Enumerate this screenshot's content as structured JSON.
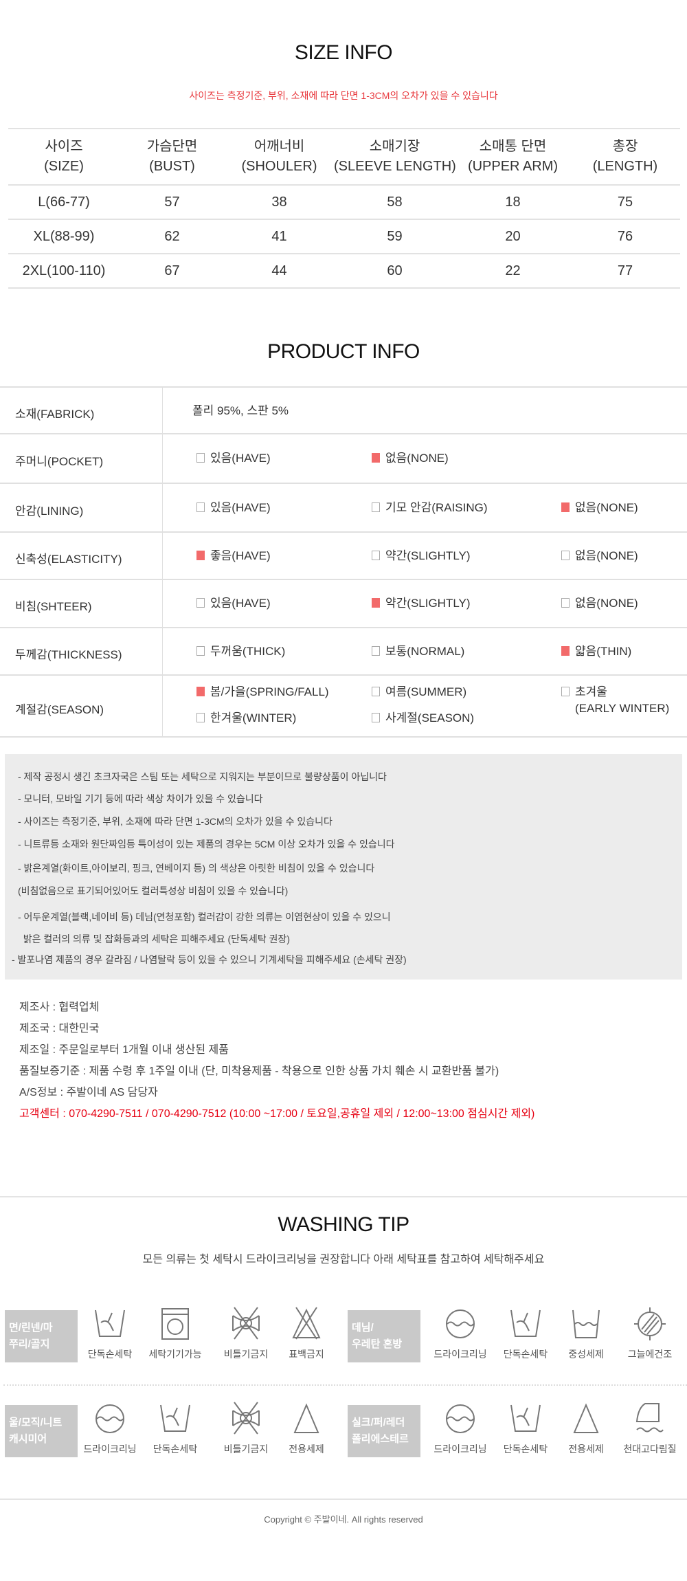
{
  "size_info": {
    "title": "SIZE INFO",
    "subtitle": "사이즈는 측정기준, 부위, 소재에 따라 단면 1-3CM의 오차가 있을 수 있습니다",
    "headers": [
      [
        "사이즈",
        "(SIZE)"
      ],
      [
        "가슴단면",
        "(BUST)"
      ],
      [
        "어깨너비",
        "(SHOULER)"
      ],
      [
        "소매기장",
        "(SLEEVE LENGTH)"
      ],
      [
        "소매통 단면",
        "(UPPER ARM)"
      ],
      [
        "총장",
        "(LENGTH)"
      ]
    ],
    "rows": [
      [
        "L(66-77)",
        "57",
        "38",
        "58",
        "18",
        "75"
      ],
      [
        "XL(88-99)",
        "62",
        "41",
        "59",
        "20",
        "76"
      ],
      [
        "2XL(100-110)",
        "67",
        "44",
        "60",
        "22",
        "77"
      ]
    ]
  },
  "product_info": {
    "title": "PRODUCT INFO",
    "accent": "#f26a6a",
    "fabric": {
      "label": "소재(FABRICK)",
      "value": "폴리 95%, 스판 5%"
    },
    "rows": [
      {
        "label": "주머니(POCKET)",
        "options": [
          {
            "text": "있음(HAVE)",
            "checked": false
          },
          {
            "text": "없음(NONE)",
            "checked": true
          }
        ]
      },
      {
        "label": "안감(LINING)",
        "options": [
          {
            "text": "있음(HAVE)",
            "checked": false
          },
          {
            "text": "기모 안감(RAISING)",
            "checked": false
          },
          {
            "text": "없음(NONE)",
            "checked": true
          }
        ]
      },
      {
        "label": "신축성(ELASTICITY)",
        "options": [
          {
            "text": "좋음(HAVE)",
            "checked": true
          },
          {
            "text": "약간(SLIGHTLY)",
            "checked": false
          },
          {
            "text": "없음(NONE)",
            "checked": false
          }
        ]
      },
      {
        "label": "비침(SHTEER)",
        "options": [
          {
            "text": "있음(HAVE)",
            "checked": false
          },
          {
            "text": "약간(SLIGHTLY)",
            "checked": true
          },
          {
            "text": "없음(NONE)",
            "checked": false
          }
        ]
      },
      {
        "label": "두께감(THICKNESS)",
        "options": [
          {
            "text": "두꺼움(THICK)",
            "checked": false
          },
          {
            "text": "보통(NORMAL)",
            "checked": false
          },
          {
            "text": "얇음(THIN)",
            "checked": true
          }
        ]
      },
      {
        "label": "계절감(SEASON)",
        "options": [
          {
            "text": "봄/가을(SPRING/FALL)",
            "checked": true
          },
          {
            "text": "여름(SUMMER)",
            "checked": false
          },
          {
            "text": "초겨울",
            "text2": "(EARLY WINTER)",
            "checked": false
          },
          {
            "text": "한겨울(WINTER)",
            "checked": false
          },
          {
            "text": "사계절(SEASON)",
            "checked": false
          }
        ]
      }
    ]
  },
  "notes": [
    "- 제작 공정시 생긴 초크자국은 스팀 또는 세탁으로 지워지는 부분이므로 불량상품이 아닙니다",
    "- 모니터, 모바일 기기 등에 따라 색상 차이가 있을 수 있습니다",
    "- 사이즈는 측정기준, 부위, 소재에 따라 단면 1-3CM의 오차가 있을 수 있습니다",
    "- 니트류등 소재와 원단짜임등 특이성이 있는 제품의 경우는 5CM 이상 오차가 있을 수 있습니다",
    "- 밝은계열(화이트,아이보리, 핑크, 연베이지 등) 의 색상은 아릿한 비침이 있을 수 있습니다",
    "(비침없음으로 표기되어있어도 컬러특성상 비침이 있을 수 있습니다)",
    "- 어두운계열(블랙,네이비 등) 데님(연청포함) 컬러감이 강한 의류는 이염현상이 있을 수 있으니",
    "  밝은 컬러의 의류 및 잡화등과의 세탁은 피해주세요 (단독세탁 권장)",
    "- 발포나염 제품의 경우 갈라짐 / 나염탈락 등이 있을 수 있으니 기계세탁을 피해주세요 (손세탁 권장)"
  ],
  "info": [
    "제조사 : 협력업체",
    "제조국 : 대한민국",
    "제조일 :  주문일로부터 1개월 이내 생산된 제품",
    "품질보증기준 : 제품 수령 후 1주일 이내 (단, 미착용제품 - 착용으로 인한 상품 가치 훼손 시 교환반품 불가)",
    "A/S정보 : 주발이네 AS 담당자",
    "고객센터 : 070-4290-7511 / 070-4290-7512 (10:00 ~17:00 / 토요일,공휴일 제외 / 12:00~13:00 점심시간 제외)"
  ],
  "washing": {
    "title": "WASHING TIP",
    "subtitle": "모든 의류는 첫 세탁시 드라이크리닝을 권장합니다 아래 세탁표를 참고하여 세탁해주세요",
    "groups": [
      {
        "label": [
          "면/린넨/마",
          "쭈리/골지"
        ],
        "icons": [
          {
            "icon": "hand-wash-icon",
            "text": "단독손세탁"
          },
          {
            "icon": "washing-machine-icon",
            "text": "세탁기기가능"
          },
          {
            "icon": "no-wring-icon",
            "text": "비틀기금지"
          },
          {
            "icon": "no-bleach-icon",
            "text": "표백금지"
          }
        ]
      },
      {
        "label": [
          "데님/",
          "우레탄 혼방"
        ],
        "icons": [
          {
            "icon": "dry-clean-icon",
            "text": "드라이크리닝"
          },
          {
            "icon": "hand-wash-icon",
            "text": "단독손세탁"
          },
          {
            "icon": "neutral-detergent-icon",
            "text": "중성세제"
          },
          {
            "icon": "shade-dry-icon",
            "text": "그늘에건조"
          }
        ]
      },
      {
        "label": [
          "울/모직/니트",
          "캐시미어"
        ],
        "icons": [
          {
            "icon": "dry-clean-icon",
            "text": "드라이크리닝"
          },
          {
            "icon": "hand-wash-icon",
            "text": "단독손세탁"
          },
          {
            "icon": "no-wring-icon",
            "text": "비틀기금지"
          },
          {
            "icon": "detergent-icon",
            "text": "전용세제"
          }
        ]
      },
      {
        "label": [
          "실크/퍼/레더",
          "폴리에스테르"
        ],
        "icons": [
          {
            "icon": "dry-clean-icon",
            "text": "드라이크리닝"
          },
          {
            "icon": "hand-wash-icon",
            "text": "단독손세탁"
          },
          {
            "icon": "detergent-icon",
            "text": "전용세제"
          },
          {
            "icon": "iron-cloth-icon",
            "text": "천대고다림질"
          }
        ]
      }
    ]
  },
  "footer": {
    "copyright": "Copyright © 주발이네. All rights reserved"
  }
}
